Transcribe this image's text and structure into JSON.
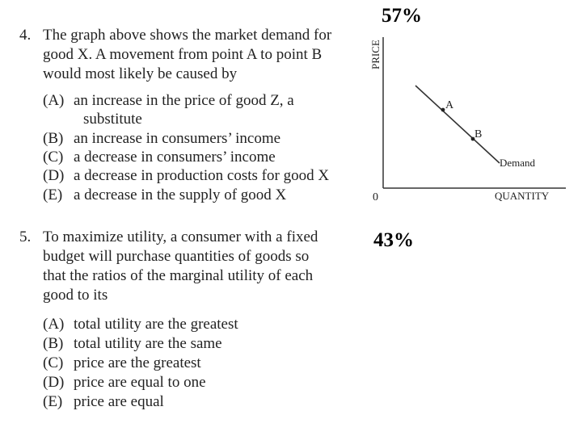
{
  "percent_q4": "57%",
  "percent_q5": "43%",
  "question4": {
    "number": "4.",
    "lines": [
      "The graph above shows the market demand for",
      "good X. A movement from point A to point B",
      "would most likely be caused by"
    ],
    "options": [
      {
        "letter": "(A)",
        "text": "an increase in the price of good Z, a",
        "cont": "substitute"
      },
      {
        "letter": "(B)",
        "text": "an increase in consumers’ income"
      },
      {
        "letter": "(C)",
        "text": "a decrease in consumers’ income"
      },
      {
        "letter": "(D)",
        "text": "a decrease in production costs for good X"
      },
      {
        "letter": "(E)",
        "text": "a decrease in the supply of good X"
      }
    ]
  },
  "question5": {
    "number": "5.",
    "lines": [
      "To maximize utility, a consumer with a fixed",
      "budget will purchase quantities of goods so",
      "that the ratios of the marginal utility of each",
      "good to its"
    ],
    "options": [
      {
        "letter": "(A)",
        "text": "total utility are the greatest"
      },
      {
        "letter": "(B)",
        "text": "total utility are the same"
      },
      {
        "letter": "(C)",
        "text": "price are the greatest"
      },
      {
        "letter": "(D)",
        "text": "price are equal to one"
      },
      {
        "letter": "(E)",
        "text": "price are equal"
      }
    ]
  },
  "graph": {
    "y_axis_label": "PRICE",
    "x_axis_label": "QUANTITY",
    "origin_label": "0",
    "point_a_label": "A",
    "point_b_label": "B",
    "curve_label": "Demand"
  }
}
